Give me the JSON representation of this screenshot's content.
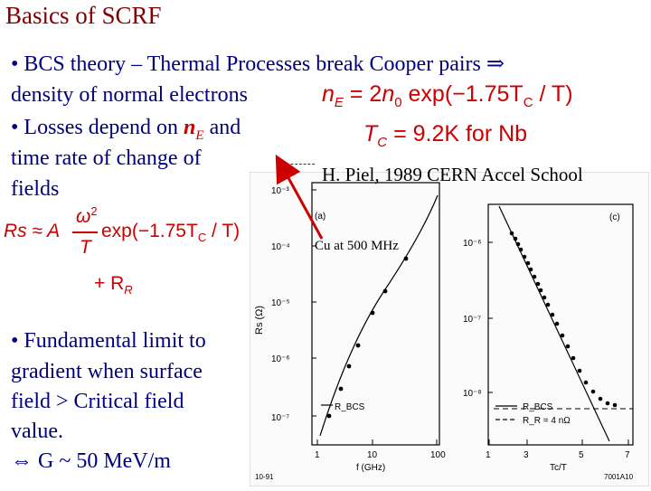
{
  "title": "Basics of SCRF",
  "bullet1": {
    "line1": "• BCS theory – Thermal Processes break Cooper pairs ⇒",
    "line2": "density of normal electrons"
  },
  "bullet2": {
    "line1_pre": "• Losses depend on ",
    "line1_var": "n",
    "line1_sub": "E",
    "line1_post": " and",
    "line2": "time rate of change of",
    "line3": "fields"
  },
  "bullet3": {
    "line1": "• Fundamental limit to",
    "line2": "gradient when surface",
    "line3": "field > Critical field",
    "line4": "value.",
    "line5": "⇔ G ~ 50 MeV/m"
  },
  "formula_nE": {
    "lhs": "n",
    "lhs_sub": "E",
    "eq": " = 2",
    "n0": "n",
    "n0_sub": "0",
    "exp": " exp(−1.75T",
    "tc_sub": "C",
    "end": " / T)"
  },
  "formula_Tc": {
    "lhs": "T",
    "lhs_sub": "C",
    "rhs": " = 9.2K for Nb"
  },
  "formula_Rs": {
    "lhs": "Rs ≈ A",
    "num": "ω",
    "num_sup": "2",
    "den": "T",
    "exp": "exp(−1.75T",
    "tc_sub": "C",
    "end": " / T)",
    "plus": "+ R",
    "plus_sub": "R"
  },
  "citation": "H. Piel, 1989 CERN Accel School",
  "cu_label": "Cu at 500 MHz",
  "plot": {
    "footer_left": "10-91",
    "footer_right": "7001A10",
    "panel_a": {
      "label": "(a)",
      "ylabel": "Rs (Ω)",
      "xlabel": "f (GHz)",
      "y_ticks": [
        "10⁻³",
        "10⁻⁴",
        "10⁻⁵",
        "10⁻⁶",
        "10⁻⁷"
      ],
      "x_ticks": [
        "1",
        "10",
        "100"
      ],
      "legend": "R_BCS"
    },
    "panel_c": {
      "label": "(c)",
      "xlabel": "Tc/T",
      "y_ticks": [
        "10⁻⁶",
        "10⁻⁷",
        "10⁻⁸"
      ],
      "x_ticks": [
        "1",
        "3",
        "5",
        "7"
      ],
      "legend1": "R_BCS",
      "legend2": "R_R = 4 nΩ"
    }
  }
}
